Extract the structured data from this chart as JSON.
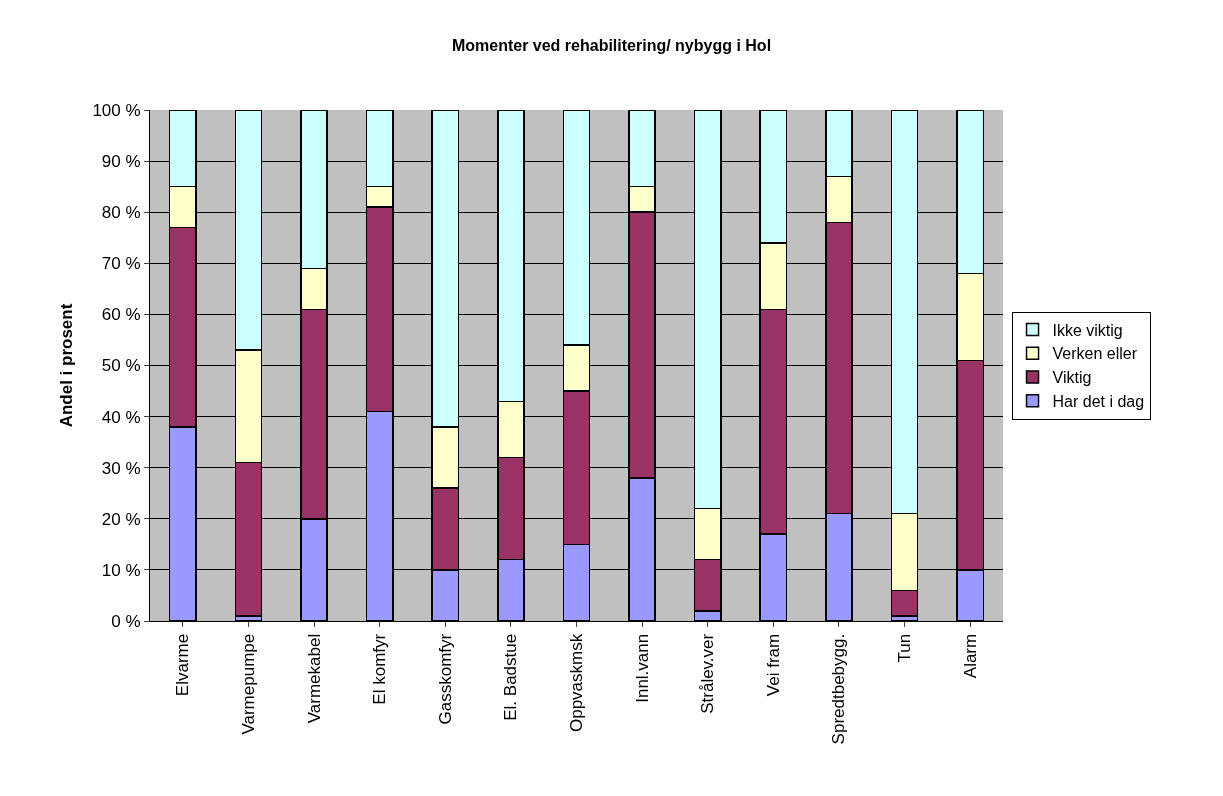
{
  "chart_data": {
    "type": "bar",
    "title": "Momenter ved rehabilitering/ nybygg i Hol",
    "ylabel": "Andel i prosent",
    "categories": [
      "Elvarme",
      "Varmepumpe",
      "Varmekabel",
      "El komfyr",
      "Gasskomfyr",
      "El. Badstue",
      "Oppvaskmsk",
      "Innl.vann",
      "Strålev.ver",
      "Vei fram",
      "Spredtbebygg.",
      "Tun",
      "Alarm"
    ],
    "stacked": true,
    "series": [
      {
        "name": "Har det i dag",
        "color": "#9999ff",
        "values": [
          38,
          1,
          20,
          41,
          10,
          12,
          15,
          28,
          2,
          17,
          21,
          1,
          10
        ]
      },
      {
        "name": "Viktig",
        "color": "#993366",
        "values": [
          39,
          30,
          41,
          40,
          16,
          20,
          30,
          52,
          10,
          44,
          57,
          5,
          41
        ]
      },
      {
        "name": "Verken eller",
        "color": "#ffffcc",
        "values": [
          8,
          22,
          8,
          4,
          12,
          11,
          9,
          5,
          10,
          13,
          9,
          15,
          17
        ]
      },
      {
        "name": "Ikke viktig",
        "color": "#ccffff",
        "values": [
          15,
          47,
          31,
          15,
          62,
          57,
          46,
          15,
          78,
          26,
          13,
          79,
          32
        ]
      }
    ],
    "ylim": [
      0,
      100
    ],
    "yticks": [
      {
        "value": 0,
        "label": "0 %"
      },
      {
        "value": 10,
        "label": "10 %"
      },
      {
        "value": 20,
        "label": "20 %"
      },
      {
        "value": 30,
        "label": "30 %"
      },
      {
        "value": 40,
        "label": "40 %"
      },
      {
        "value": 50,
        "label": "50 %"
      },
      {
        "value": 60,
        "label": "60 %"
      },
      {
        "value": 70,
        "label": "70 %"
      },
      {
        "value": 80,
        "label": "80 %"
      },
      {
        "value": 90,
        "label": "90 %"
      },
      {
        "value": 100,
        "label": "100 %"
      }
    ],
    "grid": "y",
    "legend": "right"
  }
}
